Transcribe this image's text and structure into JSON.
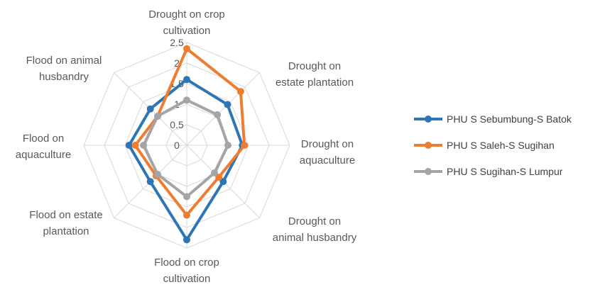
{
  "chart_data": {
    "type": "radar",
    "categories": [
      "Drought on crop cultivation",
      "Drought on estate plantation",
      "Drought on aquaculture",
      "Drought on animal husbandry",
      "Flood on crop cultivation",
      "Flood on estate plantation",
      "Flood on aquaculture",
      "Flood on animal husbandry"
    ],
    "category_lines": [
      [
        "Drought on crop",
        "cultivation"
      ],
      [
        "Drought on",
        "estate plantation"
      ],
      [
        "Drought on",
        "aquaculture"
      ],
      [
        "Drought on",
        "animal husbandry"
      ],
      [
        "Flood on crop",
        "cultivation"
      ],
      [
        "Flood on estate",
        "plantation"
      ],
      [
        "Flood on",
        "aquaculture"
      ],
      [
        "Flood on animal",
        "husbandry"
      ]
    ],
    "ticks": [
      "0",
      "0.5",
      "1",
      "1.5",
      "2",
      "2.5"
    ],
    "rmax": 2.5,
    "grid": true,
    "legend_position": "right",
    "series": [
      {
        "name": "PHU S Sebumbung-S Batok",
        "color": "#2E75B6",
        "values": [
          1.6,
          1.4,
          1.35,
          1.25,
          2.3,
          1.25,
          1.4,
          1.25
        ]
      },
      {
        "name": "PHU S Saleh-S Sugihan",
        "color": "#ED7D31",
        "values": [
          2.35,
          1.85,
          1.4,
          1.1,
          1.7,
          1.05,
          1.25,
          1.0
        ]
      },
      {
        "name": "PHU S Sugihan-S Lumpur",
        "color": "#A5A5A5",
        "values": [
          1.1,
          1.05,
          1.0,
          0.95,
          1.25,
          1.0,
          1.05,
          1.0
        ]
      }
    ]
  }
}
